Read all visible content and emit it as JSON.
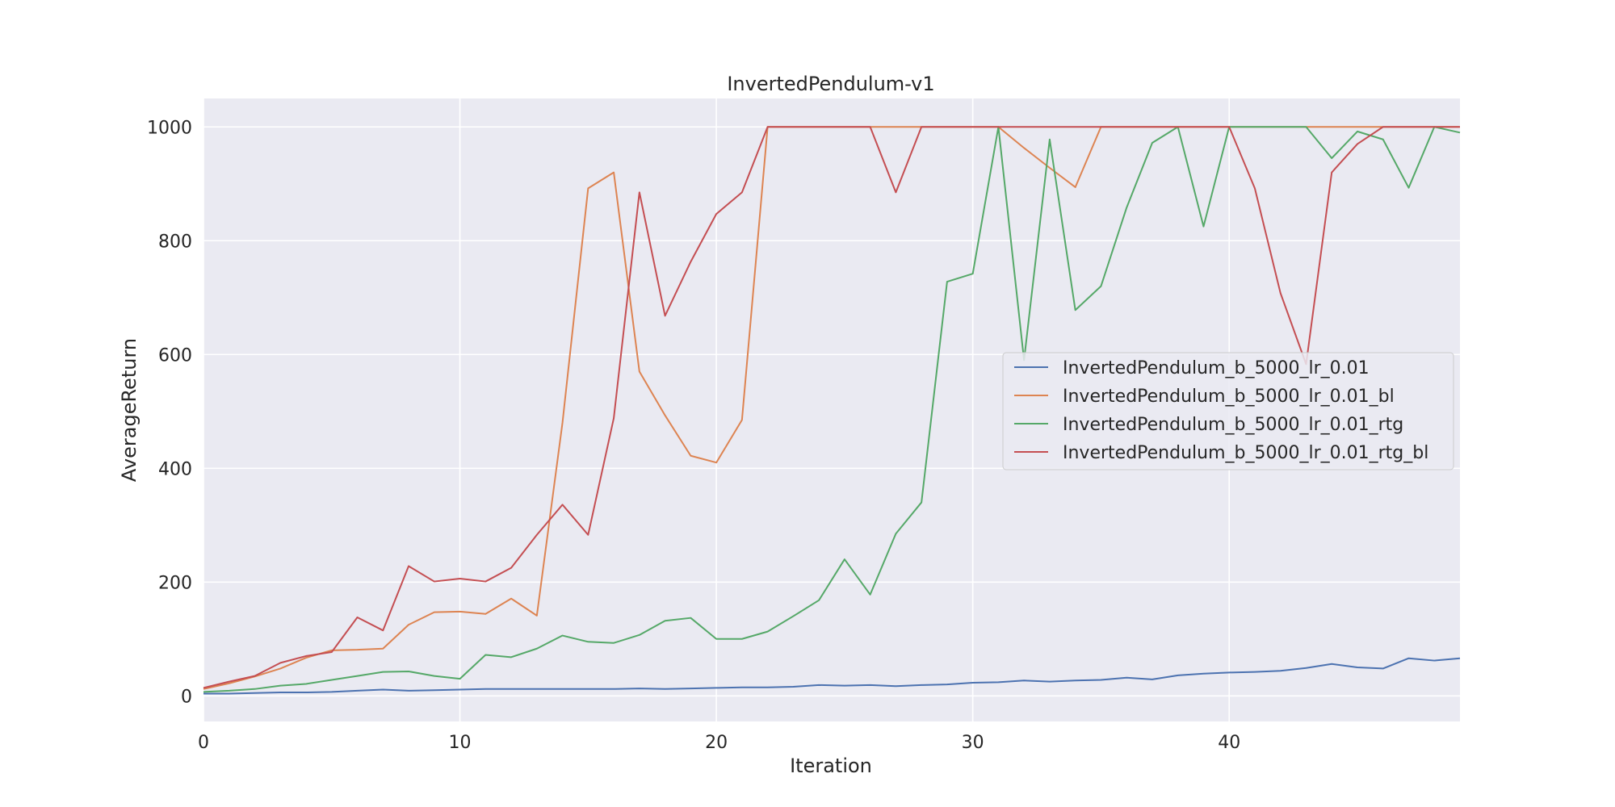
{
  "chart_data": {
    "type": "line",
    "title": "InvertedPendulum-v1",
    "xlabel": "Iteration",
    "ylabel": "AverageReturn",
    "xlim": [
      0,
      49
    ],
    "ylim": [
      -45,
      1050
    ],
    "xticks": [
      "0",
      "10",
      "20",
      "30",
      "40"
    ],
    "yticks": [
      "0",
      "200",
      "400",
      "600",
      "800",
      "1000"
    ],
    "grid": true,
    "legend_position": "center-right",
    "background": "#EAEAF2",
    "series": [
      {
        "name": "InvertedPendulum_b_5000_lr_0.01",
        "color": "#4C72B0",
        "values": [
          4,
          4,
          5,
          6,
          6,
          7,
          9,
          11,
          9,
          10,
          11,
          12,
          12,
          12,
          12,
          12,
          12,
          13,
          12,
          13,
          14,
          15,
          15,
          16,
          19,
          18,
          19,
          17,
          19,
          20,
          23,
          24,
          27,
          25,
          27,
          28,
          32,
          29,
          36,
          39,
          41,
          42,
          44,
          49,
          56,
          50,
          48,
          66,
          62,
          66
        ]
      },
      {
        "name": "InvertedPendulum_b_5000_lr_0.01_bl",
        "color": "#DD8452",
        "values": [
          12,
          22,
          34,
          48,
          67,
          80,
          81,
          83,
          125,
          147,
          148,
          144,
          171,
          141,
          480,
          892,
          920,
          570,
          493,
          422,
          410,
          485,
          1000,
          1000,
          1000,
          1000,
          1000,
          1000,
          1000,
          1000,
          1000,
          1000,
          963,
          928,
          894,
          1000,
          1000,
          1000,
          1000,
          1000,
          1000,
          1000,
          1000,
          1000,
          1000,
          1000,
          1000,
          1000,
          1000,
          1000
        ]
      },
      {
        "name": "InvertedPendulum_b_5000_lr_0.01_rtg",
        "color": "#55A868",
        "values": [
          7,
          9,
          12,
          18,
          21,
          28,
          35,
          42,
          43,
          35,
          30,
          72,
          68,
          83,
          106,
          95,
          93,
          107,
          132,
          137,
          100,
          100,
          113,
          140,
          168,
          240,
          178,
          285,
          340,
          728,
          742,
          1000,
          590,
          978,
          678,
          720,
          858,
          972,
          1000,
          825,
          1000,
          1000,
          1000,
          1000,
          945,
          992,
          978,
          893,
          1000,
          990
        ]
      },
      {
        "name": "InvertedPendulum_b_5000_lr_0.01_rtg_bl",
        "color": "#C44E52",
        "values": [
          14,
          25,
          35,
          58,
          70,
          77,
          138,
          115,
          228,
          201,
          206,
          201,
          225,
          283,
          336,
          283,
          488,
          885,
          668,
          763,
          847,
          885,
          1000,
          1000,
          1000,
          1000,
          1000,
          885,
          1000,
          1000,
          1000,
          1000,
          1000,
          1000,
          1000,
          1000,
          1000,
          1000,
          1000,
          1000,
          1000,
          892,
          708,
          583,
          920,
          970,
          1000,
          1000,
          1000,
          1000
        ]
      }
    ]
  }
}
